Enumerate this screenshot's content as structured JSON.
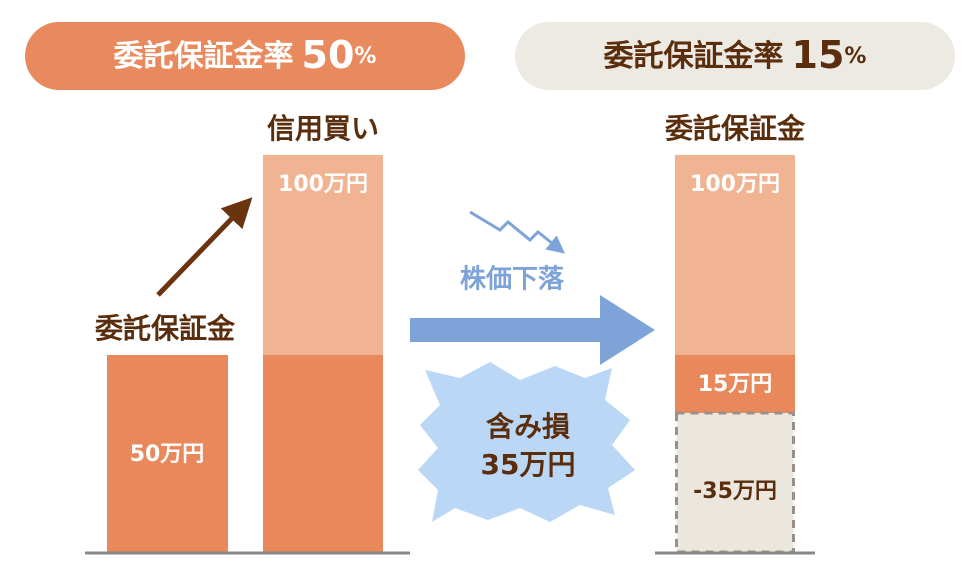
{
  "left_header": {
    "label": "委託保証金率",
    "value": "50",
    "unit": "%"
  },
  "right_header": {
    "label": "委託保証金率",
    "value": "15",
    "unit": "%"
  },
  "left": {
    "margin_label": "委託保証金",
    "margin_amount": "50万円",
    "credit_label": "信用買い",
    "credit_amount": "100万円"
  },
  "middle": {
    "drop_label": "株価下落",
    "loss_label": "含み損",
    "loss_amount": "35万円"
  },
  "right": {
    "title": "委託保証金",
    "credit_amount": "100万円",
    "remaining_amount": "15万円",
    "loss_amount": "-35万円"
  }
}
